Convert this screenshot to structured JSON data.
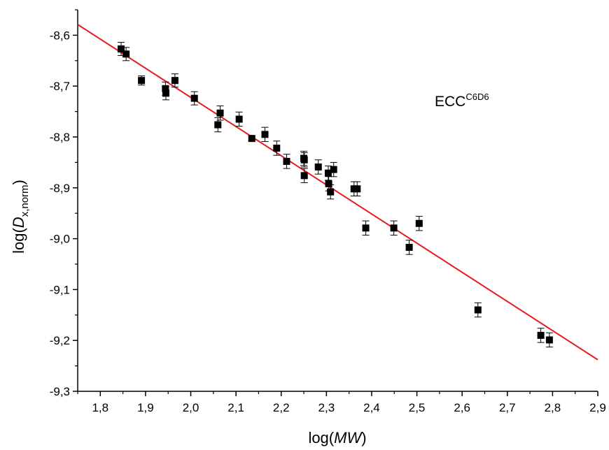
{
  "chart_data": {
    "type": "scatter",
    "x_label": {
      "prefix": "log(",
      "italic": "MW",
      "suffix": ")"
    },
    "y_label": {
      "prefix": "log(",
      "italic": "D",
      "subscript": "x,norm",
      "suffix": ")"
    },
    "annotation": {
      "base": "ECC",
      "superscript": "C6D6"
    },
    "xlim": [
      1.75,
      2.9
    ],
    "ylim": [
      -9.3,
      -8.55
    ],
    "x_ticks": [
      1.8,
      1.9,
      2.0,
      2.1,
      2.2,
      2.3,
      2.4,
      2.5,
      2.6,
      2.7,
      2.8,
      2.9
    ],
    "x_tick_labels": [
      "1,8",
      "1,9",
      "2,0",
      "2,1",
      "2,2",
      "2,3",
      "2,4",
      "2,5",
      "2,6",
      "2,7",
      "2,8",
      "2,9"
    ],
    "y_ticks": [
      -8.6,
      -8.7,
      -8.8,
      -8.9,
      -9.0,
      -9.1,
      -9.2,
      -9.3
    ],
    "y_tick_labels": [
      "-8,6",
      "-8,7",
      "-8,8",
      "-8,9",
      "-9,0",
      "-9,1",
      "-9,2",
      "-9,3"
    ],
    "grid": false,
    "marker_color": "#000000",
    "fit_color": "#e8191f",
    "points": [
      {
        "x": 1.846,
        "y": -8.627,
        "err": 0.013
      },
      {
        "x": 1.857,
        "y": -8.637,
        "err": 0.013
      },
      {
        "x": 1.891,
        "y": -8.689,
        "err": 0.009
      },
      {
        "x": 1.944,
        "y": -8.705,
        "err": 0.013
      },
      {
        "x": 1.945,
        "y": -8.714,
        "err": 0.013
      },
      {
        "x": 1.965,
        "y": -8.689,
        "err": 0.013
      },
      {
        "x": 2.008,
        "y": -8.724,
        "err": 0.013
      },
      {
        "x": 2.06,
        "y": -8.776,
        "err": 0.014
      },
      {
        "x": 2.065,
        "y": -8.753,
        "err": 0.014
      },
      {
        "x": 2.107,
        "y": -8.765,
        "err": 0.014
      },
      {
        "x": 2.135,
        "y": -8.803,
        "err": 0.004
      },
      {
        "x": 2.164,
        "y": -8.795,
        "err": 0.014
      },
      {
        "x": 2.19,
        "y": -8.822,
        "err": 0.014
      },
      {
        "x": 2.212,
        "y": -8.848,
        "err": 0.014
      },
      {
        "x": 2.25,
        "y": -8.842,
        "err": 0.014
      },
      {
        "x": 2.251,
        "y": -8.845,
        "err": 0.014
      },
      {
        "x": 2.251,
        "y": -8.876,
        "err": 0.014
      },
      {
        "x": 2.282,
        "y": -8.859,
        "err": 0.014
      },
      {
        "x": 2.304,
        "y": -8.871,
        "err": 0.014
      },
      {
        "x": 2.305,
        "y": -8.892,
        "err": 0.014
      },
      {
        "x": 2.309,
        "y": -8.908,
        "err": 0.014
      },
      {
        "x": 2.316,
        "y": -8.864,
        "err": 0.014
      },
      {
        "x": 2.361,
        "y": -8.902,
        "err": 0.014
      },
      {
        "x": 2.368,
        "y": -8.902,
        "err": 0.014
      },
      {
        "x": 2.387,
        "y": -8.979,
        "err": 0.014
      },
      {
        "x": 2.449,
        "y": -8.979,
        "err": 0.014
      },
      {
        "x": 2.483,
        "y": -9.017,
        "err": 0.014
      },
      {
        "x": 2.505,
        "y": -8.97,
        "err": 0.014
      },
      {
        "x": 2.635,
        "y": -9.14,
        "err": 0.014
      },
      {
        "x": 2.774,
        "y": -9.19,
        "err": 0.014
      },
      {
        "x": 2.793,
        "y": -9.199,
        "err": 0.014
      }
    ],
    "fit_line": {
      "x1": 1.75,
      "y1": -8.579,
      "x2": 2.9,
      "y2": -9.238
    }
  }
}
